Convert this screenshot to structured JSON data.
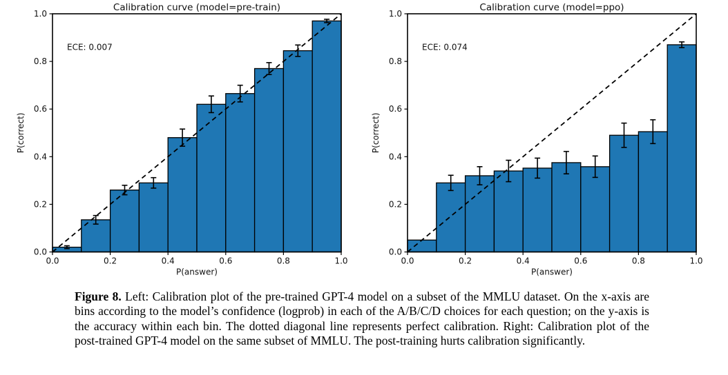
{
  "figure": {
    "caption": {
      "label": "Figure 8.",
      "text": " Left: Calibration plot of the pre-trained GPT-4 model on a subset of the MMLU dataset. On the x-axis are bins according to the model’s confidence (logprob) in each of the A/B/C/D choices for each question; on the y-axis is the accuracy within each bin. The dotted diagonal line represents perfect calibration. Right: Calibration plot of the post-trained GPT-4 model on the same subset of MMLU. The post-training hurts calibration significantly."
    }
  },
  "chart_data": [
    {
      "type": "bar",
      "title": "Calibration curve (model=pre-train)",
      "annotation": "ECE: 0.007",
      "xlabel": "P(answer)",
      "ylabel": "P(correct)",
      "xlim": [
        0,
        1
      ],
      "ylim": [
        0,
        1
      ],
      "xticks": [
        0.0,
        0.2,
        0.4,
        0.6,
        0.8,
        1.0
      ],
      "yticks": [
        0.0,
        0.2,
        0.4,
        0.6,
        0.8,
        1.0
      ],
      "grid": false,
      "legend": "none",
      "bin_width": 0.1,
      "bin_starts": [
        0.0,
        0.1,
        0.2,
        0.3,
        0.4,
        0.5,
        0.6,
        0.7,
        0.8,
        0.9
      ],
      "values": [
        0.02,
        0.135,
        0.26,
        0.29,
        0.48,
        0.62,
        0.665,
        0.77,
        0.845,
        0.97
      ],
      "errors": [
        0.006,
        0.018,
        0.02,
        0.022,
        0.036,
        0.035,
        0.035,
        0.025,
        0.024,
        0.007
      ],
      "bar_color": "#1f77b4",
      "bar_edge_color": "#000000",
      "diagonal_line": {
        "style": "dashed",
        "from": [
          0,
          0
        ],
        "to": [
          1,
          1
        ],
        "color": "#000000"
      }
    },
    {
      "type": "bar",
      "title": "Calibration curve (model=ppo)",
      "annotation": "ECE: 0.074",
      "xlabel": "P(answer)",
      "ylabel": "P(correct)",
      "xlim": [
        0,
        1
      ],
      "ylim": [
        0,
        1
      ],
      "xticks": [
        0.0,
        0.2,
        0.4,
        0.6,
        0.8,
        1.0
      ],
      "yticks": [
        0.0,
        0.2,
        0.4,
        0.6,
        0.8,
        1.0
      ],
      "grid": false,
      "legend": "none",
      "bin_width": 0.1,
      "bin_starts": [
        0.0,
        0.1,
        0.2,
        0.3,
        0.4,
        0.5,
        0.6,
        0.7,
        0.8,
        0.9
      ],
      "values": [
        0.05,
        0.29,
        0.32,
        0.34,
        0.352,
        0.375,
        0.358,
        0.49,
        0.505,
        0.87
      ],
      "errors": [
        0,
        0.032,
        0.038,
        0.045,
        0.042,
        0.047,
        0.045,
        0.051,
        0.05,
        0.012
      ],
      "bar_color": "#1f77b4",
      "bar_edge_color": "#000000",
      "diagonal_line": {
        "style": "dashed",
        "from": [
          0,
          0
        ],
        "to": [
          1,
          1
        ],
        "color": "#000000"
      }
    }
  ]
}
